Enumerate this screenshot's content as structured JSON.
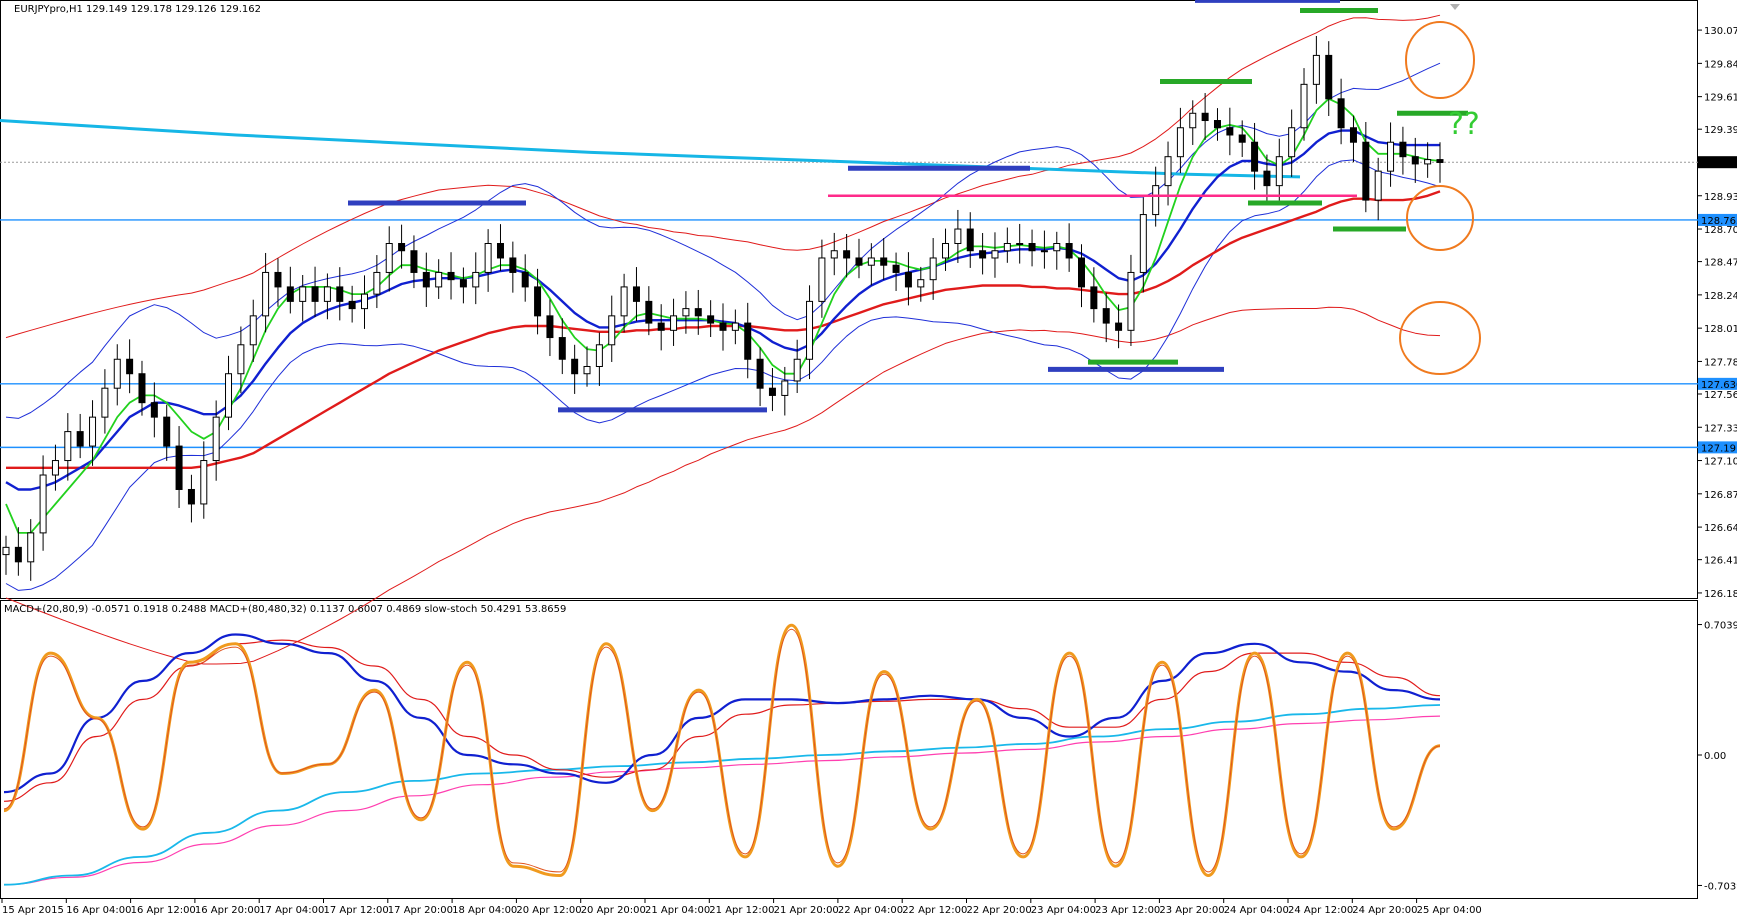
{
  "chart_data": {
    "type": "candlestick",
    "symbol_header": "EURJPYpro,H1  129.149 129.178 129.126 129.162",
    "price_axis": {
      "ylim": [
        126.15,
        130.2
      ],
      "ticks": [
        "130.075",
        "129.845",
        "129.615",
        "129.390",
        "129.160",
        "128.930",
        "128.700",
        "128.475",
        "128.245",
        "128.015",
        "127.785",
        "127.560",
        "127.330",
        "127.100",
        "126.870",
        "126.640",
        "126.415",
        "126.185"
      ]
    },
    "current_price_label": "129.162",
    "horizontal_levels": [
      {
        "label": "128.763",
        "color": "#1e90ff"
      },
      {
        "label": "127.630",
        "color": "#1e90ff"
      },
      {
        "label": "127.191",
        "color": "#1e90ff"
      }
    ],
    "time_labels": [
      "15 Apr 2015",
      "16 Apr 04:00",
      "16 Apr 12:00",
      "16 Apr 20:00",
      "17 Apr 04:00",
      "17 Apr 12:00",
      "17 Apr 20:00",
      "18 Apr 04:00",
      "20 Apr 12:00",
      "20 Apr 20:00",
      "21 Apr 04:00",
      "21 Apr 12:00",
      "21 Apr 20:00",
      "22 Apr 04:00",
      "22 Apr 12:00",
      "22 Apr 20:00",
      "23 Apr 04:00",
      "23 Apr 12:00",
      "23 Apr 20:00",
      "24 Apr 04:00",
      "24 Apr 12:00",
      "24 Apr 20:00",
      "25 Apr 04:00"
    ],
    "bars": [
      126.5,
      126.4,
      126.6,
      127.0,
      127.1,
      127.3,
      127.2,
      127.4,
      127.6,
      127.8,
      127.7,
      127.5,
      127.4,
      127.2,
      126.9,
      126.8,
      127.1,
      127.4,
      127.7,
      127.9,
      128.1,
      128.4,
      128.3,
      128.2,
      128.3,
      128.2,
      128.3,
      128.2,
      128.15,
      128.25,
      128.4,
      128.6,
      128.55,
      128.4,
      128.3,
      128.4,
      128.35,
      128.3,
      128.4,
      128.6,
      128.5,
      128.4,
      128.3,
      128.1,
      127.95,
      127.8,
      127.7,
      127.75,
      127.9,
      128.1,
      128.3,
      128.2,
      128.05,
      128.0,
      128.1,
      128.15,
      128.1,
      128.05,
      128.0,
      128.05,
      127.8,
      127.6,
      127.55,
      127.65,
      127.8,
      128.2,
      128.5,
      128.55,
      128.5,
      128.45,
      128.5,
      128.45,
      128.4,
      128.3,
      128.35,
      128.5,
      128.6,
      128.7,
      128.55,
      128.5,
      128.55,
      128.6,
      128.6,
      128.55,
      128.55,
      128.6,
      128.5,
      128.3,
      128.15,
      128.05,
      128.0,
      128.4,
      128.8,
      129.0,
      129.2,
      129.4,
      129.5,
      129.45,
      129.4,
      129.35,
      129.3,
      129.1,
      129.0,
      129.2,
      129.4,
      129.7,
      129.9,
      129.6,
      129.4,
      129.3,
      128.9,
      129.1,
      129.3,
      129.2,
      129.15,
      129.18,
      129.16
    ],
    "ma_fast_green": [
      126.8,
      126.6,
      126.6,
      126.7,
      126.8,
      126.9,
      127.0,
      127.1,
      127.25,
      127.4,
      127.5,
      127.55,
      127.55,
      127.5,
      127.4,
      127.3,
      127.25,
      127.3,
      127.45,
      127.6,
      127.8,
      128.0,
      128.15,
      128.25,
      128.3,
      128.3,
      128.3,
      128.28,
      128.25,
      128.25,
      128.3,
      128.38,
      128.45,
      128.45,
      128.42,
      128.4,
      128.38,
      128.36,
      128.38,
      128.42,
      128.45,
      128.45,
      128.42,
      128.35,
      128.22,
      128.07,
      127.95,
      127.87,
      127.86,
      127.92,
      128.02,
      128.1,
      128.12,
      128.1,
      128.08,
      128.08,
      128.08,
      128.07,
      128.05,
      128.04,
      127.98,
      127.88,
      127.76,
      127.7,
      127.7,
      127.85,
      128.05,
      128.25,
      128.38,
      128.45,
      128.48,
      128.48,
      128.47,
      128.44,
      128.42,
      128.44,
      128.48,
      128.54,
      128.58,
      128.58,
      128.57,
      128.58,
      128.59,
      128.58,
      128.57,
      128.58,
      128.56,
      128.48,
      128.37,
      128.24,
      128.14,
      128.16,
      128.3,
      128.5,
      128.75,
      129.0,
      129.2,
      129.33,
      129.4,
      129.42,
      129.4,
      129.3,
      129.18,
      129.14,
      129.2,
      129.35,
      129.52,
      129.6,
      129.56,
      129.48,
      129.3,
      129.22,
      129.22,
      129.22,
      129.2,
      129.18,
      129.17
    ],
    "ma_mid_blue": [
      126.95,
      126.9,
      126.9,
      126.92,
      126.95,
      127.0,
      127.05,
      127.1,
      127.2,
      127.3,
      127.4,
      127.45,
      127.5,
      127.5,
      127.48,
      127.45,
      127.42,
      127.42,
      127.48,
      127.55,
      127.65,
      127.77,
      127.88,
      127.98,
      128.05,
      128.1,
      128.14,
      128.17,
      128.19,
      128.21,
      128.24,
      128.28,
      128.32,
      128.34,
      128.35,
      128.36,
      128.36,
      128.36,
      128.37,
      128.39,
      128.41,
      128.42,
      128.4,
      128.35,
      128.28,
      128.2,
      128.12,
      128.06,
      128.02,
      128.02,
      128.04,
      128.06,
      128.07,
      128.07,
      128.07,
      128.07,
      128.07,
      128.07,
      128.06,
      128.05,
      128.02,
      127.98,
      127.92,
      127.88,
      127.86,
      127.9,
      127.98,
      128.08,
      128.17,
      128.25,
      128.31,
      128.35,
      128.38,
      128.4,
      128.42,
      128.44,
      128.47,
      128.5,
      128.52,
      128.53,
      128.54,
      128.55,
      128.56,
      128.56,
      128.56,
      128.57,
      128.56,
      128.53,
      128.48,
      128.42,
      128.36,
      128.34,
      128.38,
      128.46,
      128.57,
      128.7,
      128.84,
      128.96,
      129.06,
      129.13,
      129.17,
      129.17,
      129.15,
      129.14,
      129.16,
      129.22,
      129.3,
      129.36,
      129.38,
      129.38,
      129.34,
      129.3,
      129.29,
      129.28,
      129.28,
      129.28,
      129.28
    ],
    "ma_slow_red": [
      127.05,
      127.05,
      127.05,
      127.05,
      127.05,
      127.05,
      127.05,
      127.05,
      127.05,
      127.05,
      127.05,
      127.05,
      127.05,
      127.05,
      127.05,
      127.05,
      127.06,
      127.08,
      127.1,
      127.12,
      127.15,
      127.2,
      127.25,
      127.3,
      127.35,
      127.4,
      127.45,
      127.5,
      127.55,
      127.6,
      127.65,
      127.7,
      127.74,
      127.78,
      127.82,
      127.86,
      127.89,
      127.92,
      127.95,
      127.98,
      128.0,
      128.02,
      128.03,
      128.03,
      128.03,
      128.02,
      128.01,
      128.0,
      127.99,
      127.99,
      127.99,
      128.0,
      128.0,
      128.01,
      128.01,
      128.02,
      128.02,
      128.03,
      128.03,
      128.03,
      128.03,
      128.02,
      128.01,
      128.0,
      128.0,
      128.01,
      128.03,
      128.06,
      128.09,
      128.12,
      128.15,
      128.18,
      128.2,
      128.22,
      128.24,
      128.26,
      128.28,
      128.29,
      128.3,
      128.31,
      128.31,
      128.31,
      128.31,
      128.3,
      128.3,
      128.29,
      128.29,
      128.28,
      128.27,
      128.26,
      128.25,
      128.25,
      128.27,
      128.3,
      128.34,
      128.39,
      128.45,
      128.5,
      128.55,
      128.6,
      128.64,
      128.67,
      128.7,
      128.73,
      128.76,
      128.79,
      128.82,
      128.86,
      128.89,
      128.91,
      128.91,
      128.9,
      128.9,
      128.9,
      128.91,
      128.93,
      128.96
    ],
    "ma_long_cyan": [
      129.45,
      129.4,
      129.35,
      129.31,
      129.27,
      129.23,
      129.2,
      129.17,
      129.14,
      129.11,
      129.08,
      129.06
    ],
    "macd_panel": {
      "header": "MACD+(20,80,9) -0.0571 0.1918 0.2488   MACD+(80,480,32) 0.1137 0.6007 0.4869   slow-stoch 50.4291 53.8659",
      "ylim": [
        -0.75,
        0.75
      ],
      "ticks": [
        "0.7039",
        "0.00",
        "-0.7039"
      ],
      "macd_blue": [
        -0.2,
        -0.1,
        0.2,
        0.4,
        0.55,
        0.65,
        0.6,
        0.55,
        0.4,
        0.2,
        0.0,
        -0.05,
        -0.1,
        -0.15,
        0.0,
        0.2,
        0.3,
        0.3,
        0.28,
        0.3,
        0.32,
        0.3,
        0.2,
        0.1,
        0.2,
        0.4,
        0.55,
        0.6,
        0.5,
        0.45,
        0.35,
        0.3
      ],
      "macd_signal_red": [
        -0.25,
        -0.15,
        0.1,
        0.3,
        0.48,
        0.6,
        0.62,
        0.58,
        0.48,
        0.3,
        0.1,
        0.0,
        -0.08,
        -0.12,
        -0.08,
        0.1,
        0.22,
        0.27,
        0.28,
        0.29,
        0.3,
        0.3,
        0.25,
        0.15,
        0.15,
        0.3,
        0.45,
        0.55,
        0.55,
        0.5,
        0.42,
        0.32
      ],
      "long_macd_cyan": [
        -0.7,
        -0.65,
        -0.55,
        -0.42,
        -0.3,
        -0.2,
        -0.14,
        -0.1,
        -0.08,
        -0.06,
        -0.04,
        -0.02,
        0.0,
        0.02,
        0.04,
        0.06,
        0.1,
        0.14,
        0.18,
        0.22,
        0.25,
        0.27
      ],
      "long_signal_pink": [
        -0.7,
        -0.66,
        -0.58,
        -0.48,
        -0.38,
        -0.3,
        -0.22,
        -0.16,
        -0.12,
        -0.09,
        -0.07,
        -0.05,
        -0.03,
        -0.01,
        0.01,
        0.03,
        0.07,
        0.1,
        0.14,
        0.17,
        0.19,
        0.21
      ],
      "stoch_orange": [
        -0.3,
        0.55,
        0.2,
        -0.4,
        0.5,
        0.6,
        -0.1,
        -0.05,
        0.35,
        -0.35,
        0.5,
        -0.6,
        -0.65,
        0.6,
        -0.3,
        0.35,
        -0.55,
        0.7,
        -0.6,
        0.45,
        -0.4,
        0.3,
        -0.55,
        0.55,
        -0.6,
        0.5,
        -0.65,
        0.55,
        -0.55,
        0.55,
        -0.4,
        0.05
      ]
    }
  }
}
